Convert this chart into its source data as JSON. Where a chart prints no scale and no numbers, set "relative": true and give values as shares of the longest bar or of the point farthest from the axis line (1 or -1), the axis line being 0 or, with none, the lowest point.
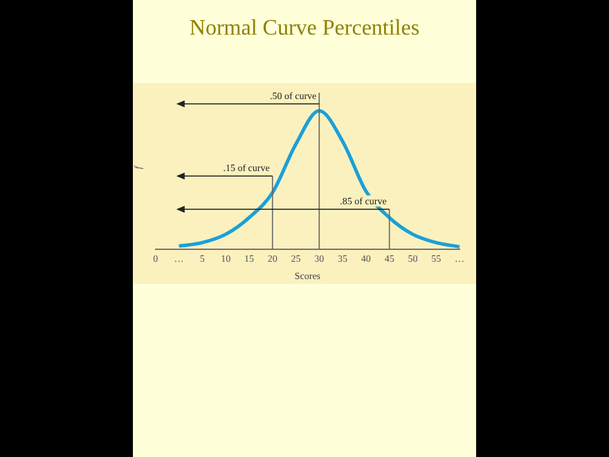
{
  "chart_data": {
    "type": "line",
    "title": "Normal Curve Percentiles",
    "xlabel": "Scores",
    "ylabel": "f",
    "categories": [
      "0",
      "…",
      "5",
      "10",
      "15",
      "20",
      "25",
      "30",
      "35",
      "40",
      "45",
      "50",
      "55",
      "…"
    ],
    "values": [
      null,
      0.025,
      0.05,
      0.11,
      0.23,
      0.41,
      0.76,
      1,
      0.78,
      0.42,
      0.23,
      0.11,
      0.05,
      0.02
    ],
    "color": "#1ba0d8",
    "relative": true,
    "ref_lines": [
      {
        "axis": "x",
        "value": "30",
        "label": ".50 of curve"
      },
      {
        "axis": "x",
        "value": "20",
        "label": ".15 of curve"
      },
      {
        "axis": "x",
        "value": "45",
        "label": ".85 of curve"
      }
    ],
    "grid": false,
    "legend": false,
    "marker": "none"
  }
}
